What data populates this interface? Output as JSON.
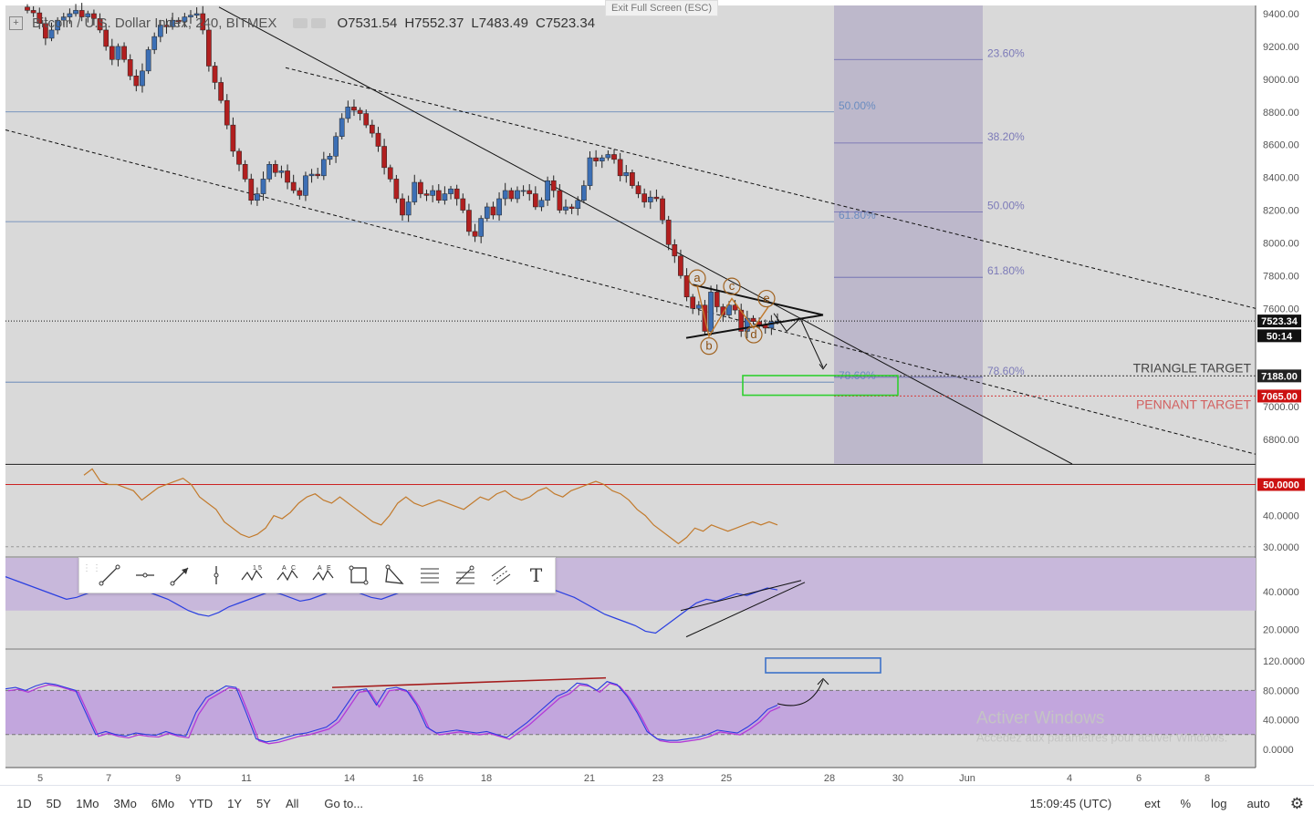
{
  "header": {
    "symbol": "Bitcoin / U.S. Dollar Index, 240, BITMEX",
    "open": "O7531.54",
    "high": "H7552.37",
    "low": "L7483.49",
    "close": "C7523.34"
  },
  "exit_fullscreen": "Exit Full Screen (ESC)",
  "colors": {
    "up": "#3c6fb5",
    "down": "#b11f1f",
    "fib_band": "#b7b2c8",
    "rsi_band": "#c8b8db",
    "stoch_band": "#c2a6dd",
    "green_box": "#2fcf2f",
    "blue_box": "#3d72c9",
    "triangle_target": "#333333",
    "pennant_target": "#cc0000"
  },
  "chart_data": [
    {
      "type": "candlestick",
      "title": "Bitcoin / U.S. Dollar Index, 240, BITMEX",
      "ylim": [
        6650,
        9450
      ],
      "x_tick_labels": [
        "5",
        "7",
        "9",
        "11",
        "14",
        "16",
        "18",
        "21",
        "23",
        "25",
        "28",
        "30",
        "Jun",
        "4",
        "6",
        "8"
      ],
      "y_tick_labels": [
        "9400.00",
        "9200.00",
        "9000.00",
        "8800.00",
        "8600.00",
        "8400.00",
        "8200.00",
        "8000.00",
        "7800.00",
        "7600.00",
        "7000.00",
        "6800.00"
      ],
      "y_tick_values": [
        9400,
        9200,
        9000,
        8800,
        8600,
        8400,
        8200,
        8000,
        7800,
        7600,
        7000,
        6800
      ],
      "closes": [
        9420,
        9405,
        9340,
        9250,
        9300,
        9360,
        9380,
        9400,
        9420,
        9380,
        9400,
        9370,
        9300,
        9200,
        9120,
        9200,
        9120,
        9020,
        8960,
        9050,
        9180,
        9260,
        9330,
        9320,
        9360,
        9350,
        9380,
        9390,
        9400,
        9300,
        9080,
        8980,
        8870,
        8720,
        8560,
        8480,
        8390,
        8260,
        8300,
        8390,
        8480,
        8430,
        8440,
        8370,
        8320,
        8290,
        8410,
        8420,
        8410,
        8510,
        8530,
        8650,
        8760,
        8830,
        8810,
        8790,
        8720,
        8670,
        8590,
        8460,
        8390,
        8270,
        8170,
        8250,
        8370,
        8300,
        8290,
        8320,
        8260,
        8300,
        8330,
        8270,
        8200,
        8070,
        8040,
        8150,
        8220,
        8170,
        8270,
        8320,
        8270,
        8320,
        8320,
        8300,
        8220,
        8260,
        8380,
        8320,
        8200,
        8220,
        8210,
        8260,
        8350,
        8520,
        8500,
        8520,
        8540,
        8510,
        8410,
        8430,
        8350,
        8300,
        8250,
        8280,
        8270,
        8140,
        7990,
        7920,
        7800,
        7670,
        7600,
        7620,
        7460,
        7700,
        7610,
        7560,
        7620,
        7590,
        7460,
        7540,
        7520,
        7500,
        7480,
        7520,
        7523
      ]
    },
    {
      "type": "line",
      "name": "RSI",
      "ylim": [
        27,
        56
      ],
      "y_tick_labels": [
        "50.0000",
        "40.0000",
        "30.0000"
      ],
      "y_tick_values": [
        50,
        40,
        30
      ],
      "values": [
        53,
        55,
        51,
        50,
        50,
        49,
        48,
        45,
        47,
        49,
        50,
        51,
        52,
        50,
        46,
        44,
        42,
        38,
        36,
        34,
        33,
        34,
        36,
        40,
        39,
        41,
        44,
        46,
        47,
        45,
        44,
        46,
        44,
        42,
        40,
        38,
        37,
        40,
        44,
        46,
        44,
        43,
        44,
        45,
        44,
        43,
        42,
        44,
        46,
        45,
        47,
        48,
        46,
        45,
        46,
        48,
        49,
        47,
        46,
        48,
        49,
        50,
        51,
        50,
        48,
        47,
        45,
        42,
        40,
        37,
        35,
        33,
        31,
        33,
        36,
        35,
        37,
        36,
        35,
        36,
        37,
        38,
        37,
        38,
        37
      ],
      "levels": [
        50,
        30
      ]
    },
    {
      "type": "line",
      "name": "Oscillator",
      "ylim": [
        10,
        58
      ],
      "y_tick_labels": [
        "40.0000",
        "20.0000"
      ],
      "y_tick_values": [
        40,
        20
      ],
      "values": [
        48,
        46,
        44,
        42,
        40,
        38,
        36,
        37,
        39,
        41,
        43,
        45,
        44,
        42,
        40,
        38,
        36,
        33,
        30,
        28,
        27,
        29,
        32,
        34,
        36,
        38,
        40,
        39,
        37,
        35,
        36,
        38,
        40,
        42,
        41,
        39,
        37,
        36,
        38,
        40,
        42,
        44,
        46,
        48,
        50,
        52,
        54,
        55,
        53,
        51,
        49,
        47,
        45,
        43,
        41,
        39,
        37,
        34,
        31,
        28,
        26,
        24,
        22,
        19,
        18,
        22,
        26,
        30,
        34,
        36,
        35,
        37,
        39,
        38,
        40,
        42,
        41
      ],
      "levels": [
        45,
        30
      ]
    },
    {
      "type": "line",
      "name": "Stoch RSI",
      "ylim": [
        -25,
        135
      ],
      "y_tick_labels": [
        "120.0000",
        "80.0000",
        "40.0000",
        "0.0000"
      ],
      "y_tick_values": [
        120,
        80,
        40,
        0
      ],
      "values": [
        82,
        84,
        80,
        86,
        90,
        88,
        84,
        80,
        50,
        20,
        24,
        20,
        18,
        22,
        20,
        19,
        24,
        20,
        18,
        50,
        70,
        78,
        86,
        84,
        50,
        14,
        10,
        12,
        16,
        20,
        22,
        26,
        30,
        40,
        60,
        80,
        82,
        60,
        82,
        84,
        80,
        60,
        30,
        22,
        24,
        26,
        24,
        22,
        24,
        20,
        16,
        26,
        36,
        48,
        60,
        72,
        78,
        90,
        88,
        80,
        92,
        88,
        72,
        50,
        24,
        14,
        12,
        12,
        14,
        16,
        20,
        26,
        24,
        22,
        30,
        40,
        54,
        60
      ],
      "levels": [
        80,
        20
      ]
    }
  ],
  "annotations": {
    "fib_left": [
      "50.00%",
      "61.80%",
      "78.60%"
    ],
    "fib_right": [
      "23.60%",
      "38.20%",
      "50.00%",
      "61.80%",
      "78.60%"
    ],
    "elliott": [
      "a",
      "b",
      "c",
      "d",
      "e"
    ],
    "triangle_target_label": "TRIANGLE TARGET",
    "pennant_target_label": "PENNANT TARGET",
    "price_tags": [
      "7523.34",
      "50:14",
      "7188.00",
      "7065.00"
    ],
    "rsi_tag": "50.0000",
    "watermark_title": "Activer Windows",
    "watermark_sub": "Accédez aux paramètres pour activer Windows."
  },
  "toolbar": {
    "tools": [
      "trend-line",
      "horizontal-ray",
      "arrow",
      "vertical-line",
      "abcd-pattern",
      "abc-pattern",
      "elliott-abcde",
      "rectangle",
      "triangle",
      "fib-retracement",
      "fib-fan",
      "parallel-channel",
      "text"
    ],
    "text_tool_label": "T"
  },
  "bottom": {
    "ranges": [
      "1D",
      "5D",
      "1Mo",
      "3Mo",
      "6Mo",
      "YTD",
      "1Y",
      "5Y",
      "All"
    ],
    "goto": "Go to...",
    "clock": "15:09:45 (UTC)",
    "ext": "ext",
    "pct": "%",
    "log": "log",
    "auto": "auto"
  }
}
